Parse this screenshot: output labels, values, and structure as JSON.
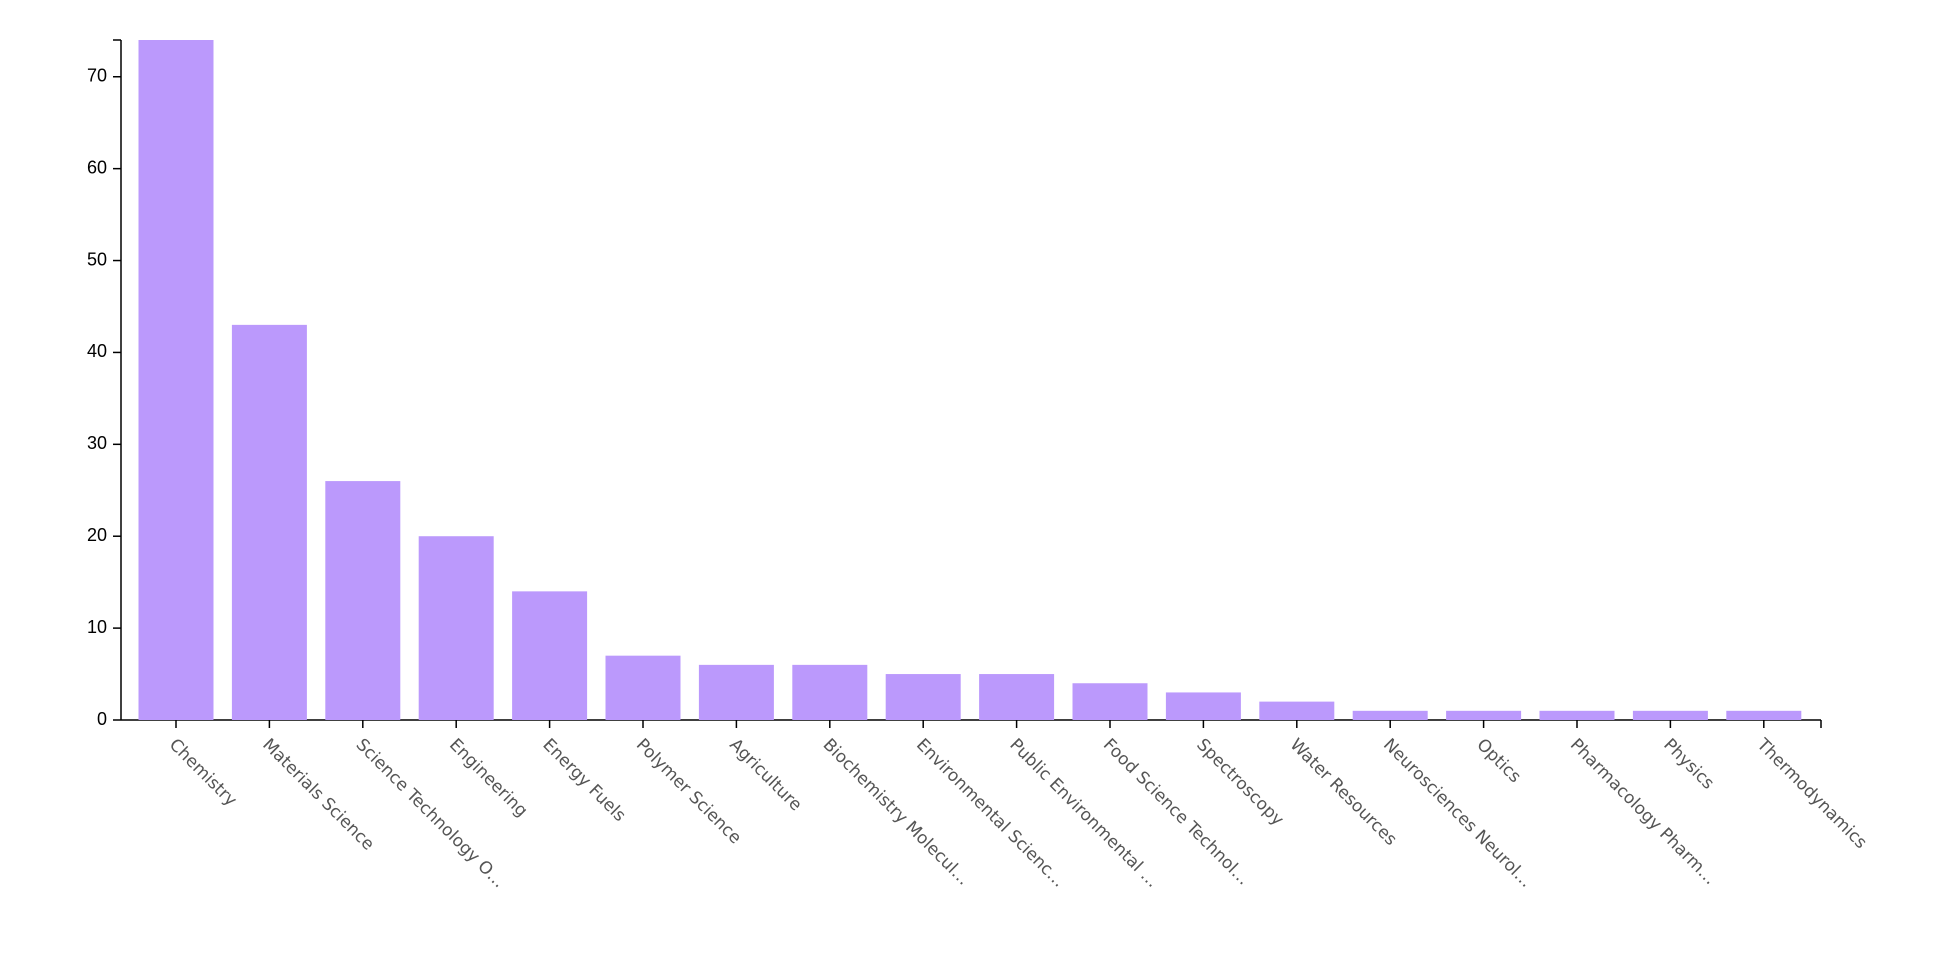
{
  "chart_data": {
    "type": "bar",
    "categories": [
      "Chemistry",
      "Materials Science",
      "Science Technology O…",
      "Engineering",
      "Energy Fuels",
      "Polymer Science",
      "Agriculture",
      "Biochemistry Molecul…",
      "Environmental Scienc…",
      "Public Environmental …",
      "Food Science Technol…",
      "Spectroscopy",
      "Water Resources",
      "Neurosciences Neurol…",
      "Optics",
      "Pharmacology Pharm…",
      "Physics",
      "Thermodynamics"
    ],
    "values": [
      74,
      43,
      26,
      20,
      14,
      7,
      6,
      6,
      5,
      5,
      4,
      3,
      2,
      1,
      1,
      1,
      1,
      1
    ],
    "color": "#bb99fc",
    "ylim": [
      0,
      74
    ],
    "yticks": [
      0,
      10,
      20,
      30,
      40,
      50,
      60,
      70
    ],
    "grid": false
  }
}
